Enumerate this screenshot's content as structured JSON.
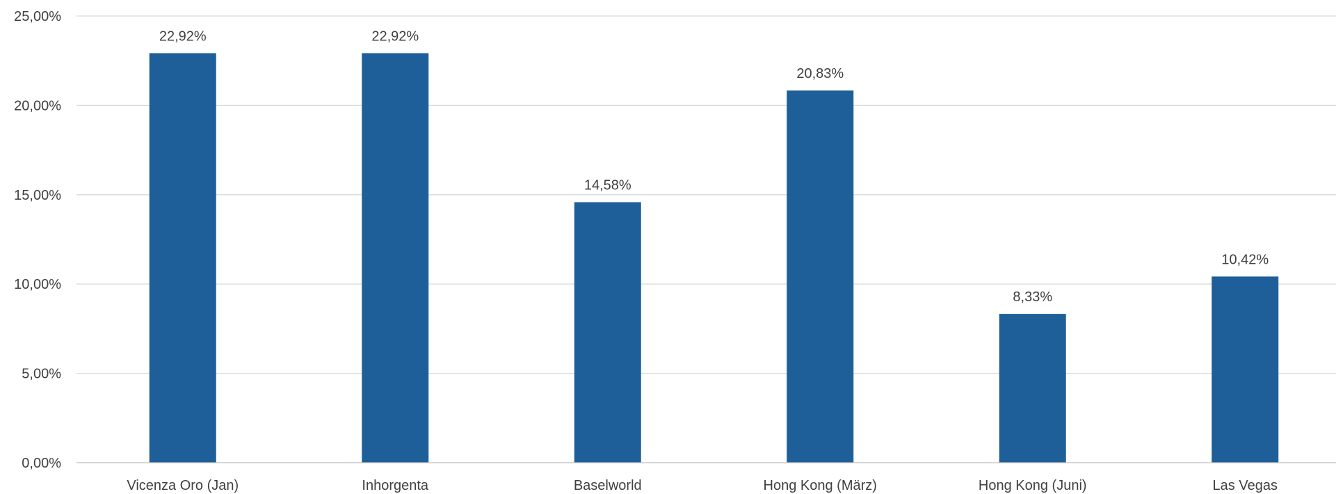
{
  "chart_data": {
    "type": "bar",
    "title": "",
    "xlabel": "",
    "ylabel": "",
    "categories": [
      "Vicenza Oro (Jan)",
      "Inhorgenta",
      "Baselworld",
      "Hong Kong (März)",
      "Hong Kong (Juni)",
      "Las Vegas"
    ],
    "values": [
      22.92,
      22.92,
      14.58,
      20.83,
      8.33,
      10.42
    ],
    "data_labels": [
      "22,92%",
      "22,92%",
      "14,58%",
      "20,83%",
      "8,33%",
      "10,42%"
    ],
    "ylim": [
      0,
      25
    ],
    "yticks": [
      0,
      5,
      10,
      15,
      20,
      25
    ],
    "ytick_labels": [
      "0,00%",
      "5,00%",
      "10,00%",
      "15,00%",
      "20,00%",
      "25,00%"
    ],
    "grid": true,
    "legend": "none",
    "bar_color": "#1f5f99"
  }
}
